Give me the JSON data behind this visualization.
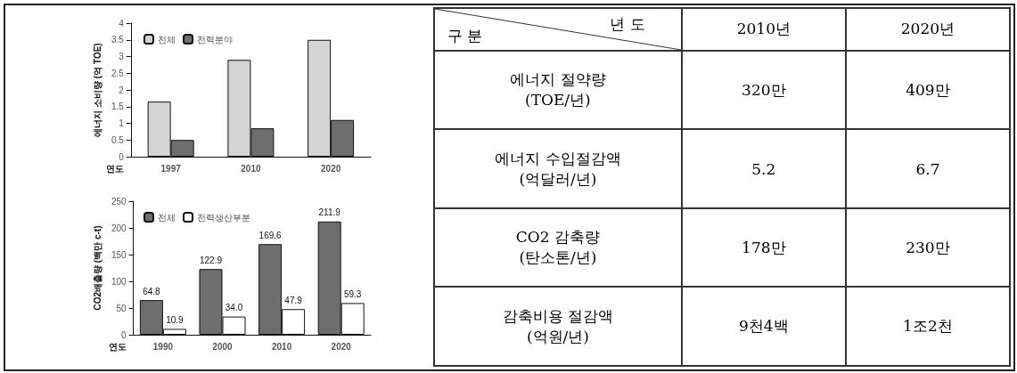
{
  "chart_data": [
    {
      "type": "bar",
      "xlabel": "연도",
      "ylabel": "에너지 소비량 (억 TOE)",
      "categories": [
        "1997",
        "2010",
        "2020"
      ],
      "series": [
        {
          "name": "전체",
          "color": "#d4d4d4",
          "values": [
            1.65,
            2.9,
            3.5
          ]
        },
        {
          "name": "전력분야",
          "color": "#6e6e6e",
          "values": [
            0.5,
            0.85,
            1.1
          ]
        }
      ],
      "ylim": [
        0,
        4
      ],
      "yticks": [
        0,
        0.5,
        1,
        1.5,
        2,
        2.5,
        3,
        3.5,
        4
      ],
      "legend": "top left"
    },
    {
      "type": "bar",
      "xlabel": "연도",
      "ylabel": "CO2배출량 (백만 c-t)",
      "categories": [
        "1990",
        "2000",
        "2010",
        "2020"
      ],
      "series": [
        {
          "name": "전체",
          "color": "#6e6e6e",
          "values": [
            64.8,
            122.9,
            169.6,
            211.9
          ],
          "value_labels": [
            "64.8",
            "122.9",
            "169.6",
            "211.9"
          ]
        },
        {
          "name": "전력생산부분",
          "color": "#ffffff",
          "values": [
            10.9,
            34.0,
            47.9,
            59.3
          ],
          "value_labels": [
            "10.9",
            "34.0",
            "47.9",
            "59.3"
          ]
        }
      ],
      "ylim": [
        0,
        250
      ],
      "yticks": [
        0,
        50,
        100,
        150,
        200,
        250
      ],
      "legend": "top left"
    },
    {
      "type": "other",
      "annotations": [
        "년 도",
        "구 분",
        "2010년",
        "2020년",
        "에너지 절약량\n(TOE/년)",
        "320만",
        "409만",
        "에너지 수입절감액\n(억달러/년)",
        "5.2",
        "6.7",
        "CO2 감축량\n(탄소톤/년)",
        "178만",
        "230만",
        "감축비용 절감액\n(억원/년)",
        "9천4백",
        "1조2천"
      ]
    }
  ]
}
